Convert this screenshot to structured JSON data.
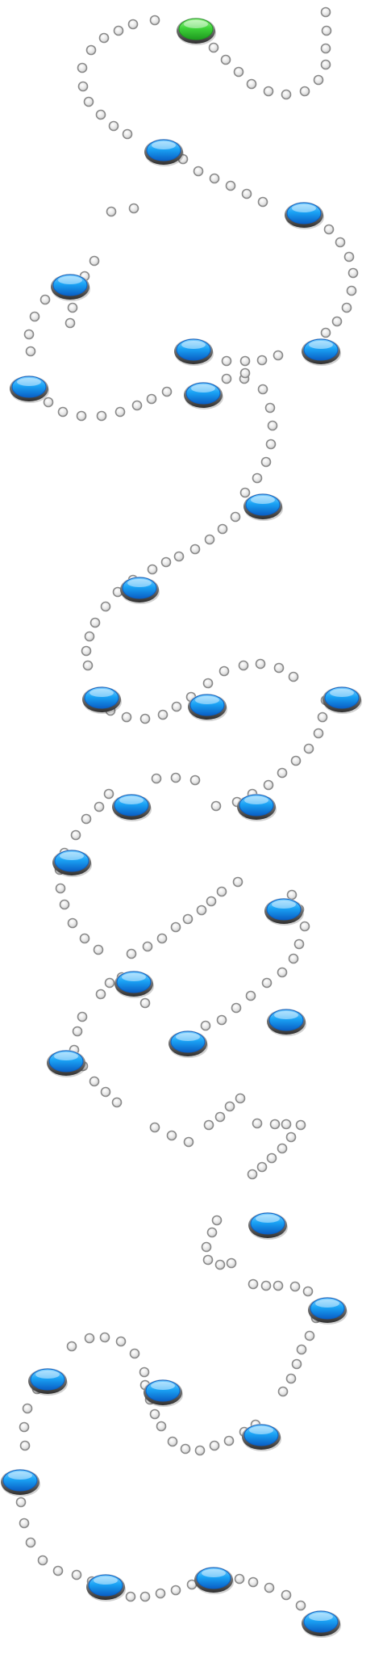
{
  "board": {
    "name": "level-map",
    "level_count": 28,
    "current_level": 1,
    "colors": {
      "background": "#ffffff",
      "current_node": "#3fd43a",
      "current_node_dark": "#1e9a1f",
      "level_node": "#1a9cf2",
      "level_node_dark": "#0a5fc4",
      "node_rim": "#5a5a5a",
      "path_dot": "#e9e9e9",
      "path_dot_rim": "#8a8a8a"
    },
    "icons": {
      "current_node": "green-level-button-icon",
      "level_node": "blue-level-button-icon",
      "path_dot": "path-dot-icon"
    }
  }
}
